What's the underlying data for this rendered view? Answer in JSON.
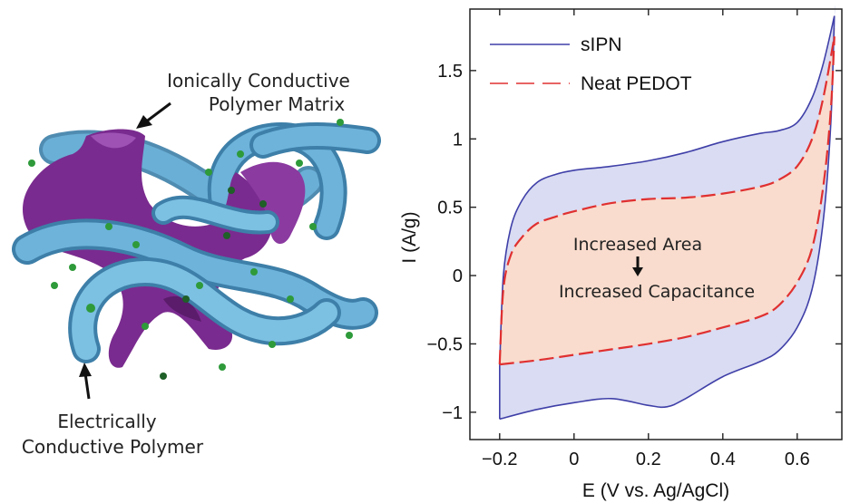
{
  "schematic": {
    "label_matrix_line1": "Ionically Conductive",
    "label_matrix_line2": "Polymer Matrix",
    "label_polymer_line1": "Electrically",
    "label_polymer_line2": "Conductive Polymer",
    "colors": {
      "matrix": "#7a2b8f",
      "tube": "#5ea6cf",
      "dot": "#2e9a3a"
    }
  },
  "annotation": {
    "line1": "Increased Area",
    "line2": "Increased Capacitance"
  },
  "chart_data": {
    "type": "line",
    "title": "",
    "xlabel": "E (V vs. Ag/AgCl)",
    "ylabel": "I (A/g)",
    "xlim": [
      -0.28,
      0.72
    ],
    "ylim": [
      -1.2,
      1.95
    ],
    "xticks": [
      -0.2,
      0,
      0.2,
      0.4,
      0.6
    ],
    "xtick_labels": [
      "−0.2",
      "0",
      "0.2",
      "0.4",
      "0.6"
    ],
    "yticks": [
      -1,
      -0.5,
      0,
      0.5,
      1,
      1.5
    ],
    "ytick_labels": [
      "−1",
      "−0.5",
      "0",
      "0.5",
      "1",
      "1.5"
    ],
    "grid": false,
    "legend_position": "top-left",
    "series": [
      {
        "name": "sIPN",
        "color": "#3f3fa8",
        "fill": "#d9dcf2",
        "style": "solid",
        "upper": [
          [
            -0.2,
            -0.66
          ],
          [
            -0.19,
            0.0
          ],
          [
            -0.17,
            0.35
          ],
          [
            -0.14,
            0.55
          ],
          [
            -0.1,
            0.68
          ],
          [
            -0.05,
            0.74
          ],
          [
            0.0,
            0.77
          ],
          [
            0.1,
            0.8
          ],
          [
            0.2,
            0.84
          ],
          [
            0.3,
            0.9
          ],
          [
            0.4,
            0.98
          ],
          [
            0.5,
            1.04
          ],
          [
            0.55,
            1.06
          ],
          [
            0.6,
            1.12
          ],
          [
            0.64,
            1.3
          ],
          [
            0.67,
            1.55
          ],
          [
            0.7,
            1.9
          ]
        ],
        "lower": [
          [
            -0.2,
            -1.05
          ],
          [
            -0.1,
            -0.98
          ],
          [
            0.0,
            -0.93
          ],
          [
            0.1,
            -0.9
          ],
          [
            0.2,
            -0.95
          ],
          [
            0.25,
            -0.96
          ],
          [
            0.3,
            -0.9
          ],
          [
            0.4,
            -0.74
          ],
          [
            0.5,
            -0.63
          ],
          [
            0.55,
            -0.55
          ],
          [
            0.6,
            -0.38
          ],
          [
            0.64,
            -0.1
          ],
          [
            0.67,
            0.4
          ],
          [
            0.69,
            1.1
          ],
          [
            0.7,
            1.9
          ]
        ]
      },
      {
        "name": "Neat PEDOT",
        "color": "#e03030",
        "fill": "#f9dccd",
        "style": "dashed",
        "upper": [
          [
            -0.2,
            -0.65
          ],
          [
            -0.19,
            -0.1
          ],
          [
            -0.17,
            0.15
          ],
          [
            -0.14,
            0.28
          ],
          [
            -0.1,
            0.38
          ],
          [
            -0.05,
            0.43
          ],
          [
            0.0,
            0.47
          ],
          [
            0.1,
            0.53
          ],
          [
            0.2,
            0.56
          ],
          [
            0.3,
            0.57
          ],
          [
            0.4,
            0.6
          ],
          [
            0.5,
            0.65
          ],
          [
            0.55,
            0.7
          ],
          [
            0.6,
            0.8
          ],
          [
            0.64,
            1.0
          ],
          [
            0.67,
            1.3
          ],
          [
            0.7,
            1.75
          ]
        ],
        "lower": [
          [
            -0.2,
            -0.65
          ],
          [
            -0.1,
            -0.62
          ],
          [
            0.0,
            -0.58
          ],
          [
            0.1,
            -0.54
          ],
          [
            0.2,
            -0.5
          ],
          [
            0.3,
            -0.45
          ],
          [
            0.4,
            -0.38
          ],
          [
            0.5,
            -0.3
          ],
          [
            0.55,
            -0.22
          ],
          [
            0.6,
            -0.05
          ],
          [
            0.64,
            0.2
          ],
          [
            0.67,
            0.65
          ],
          [
            0.69,
            1.2
          ],
          [
            0.7,
            1.75
          ]
        ]
      }
    ]
  }
}
